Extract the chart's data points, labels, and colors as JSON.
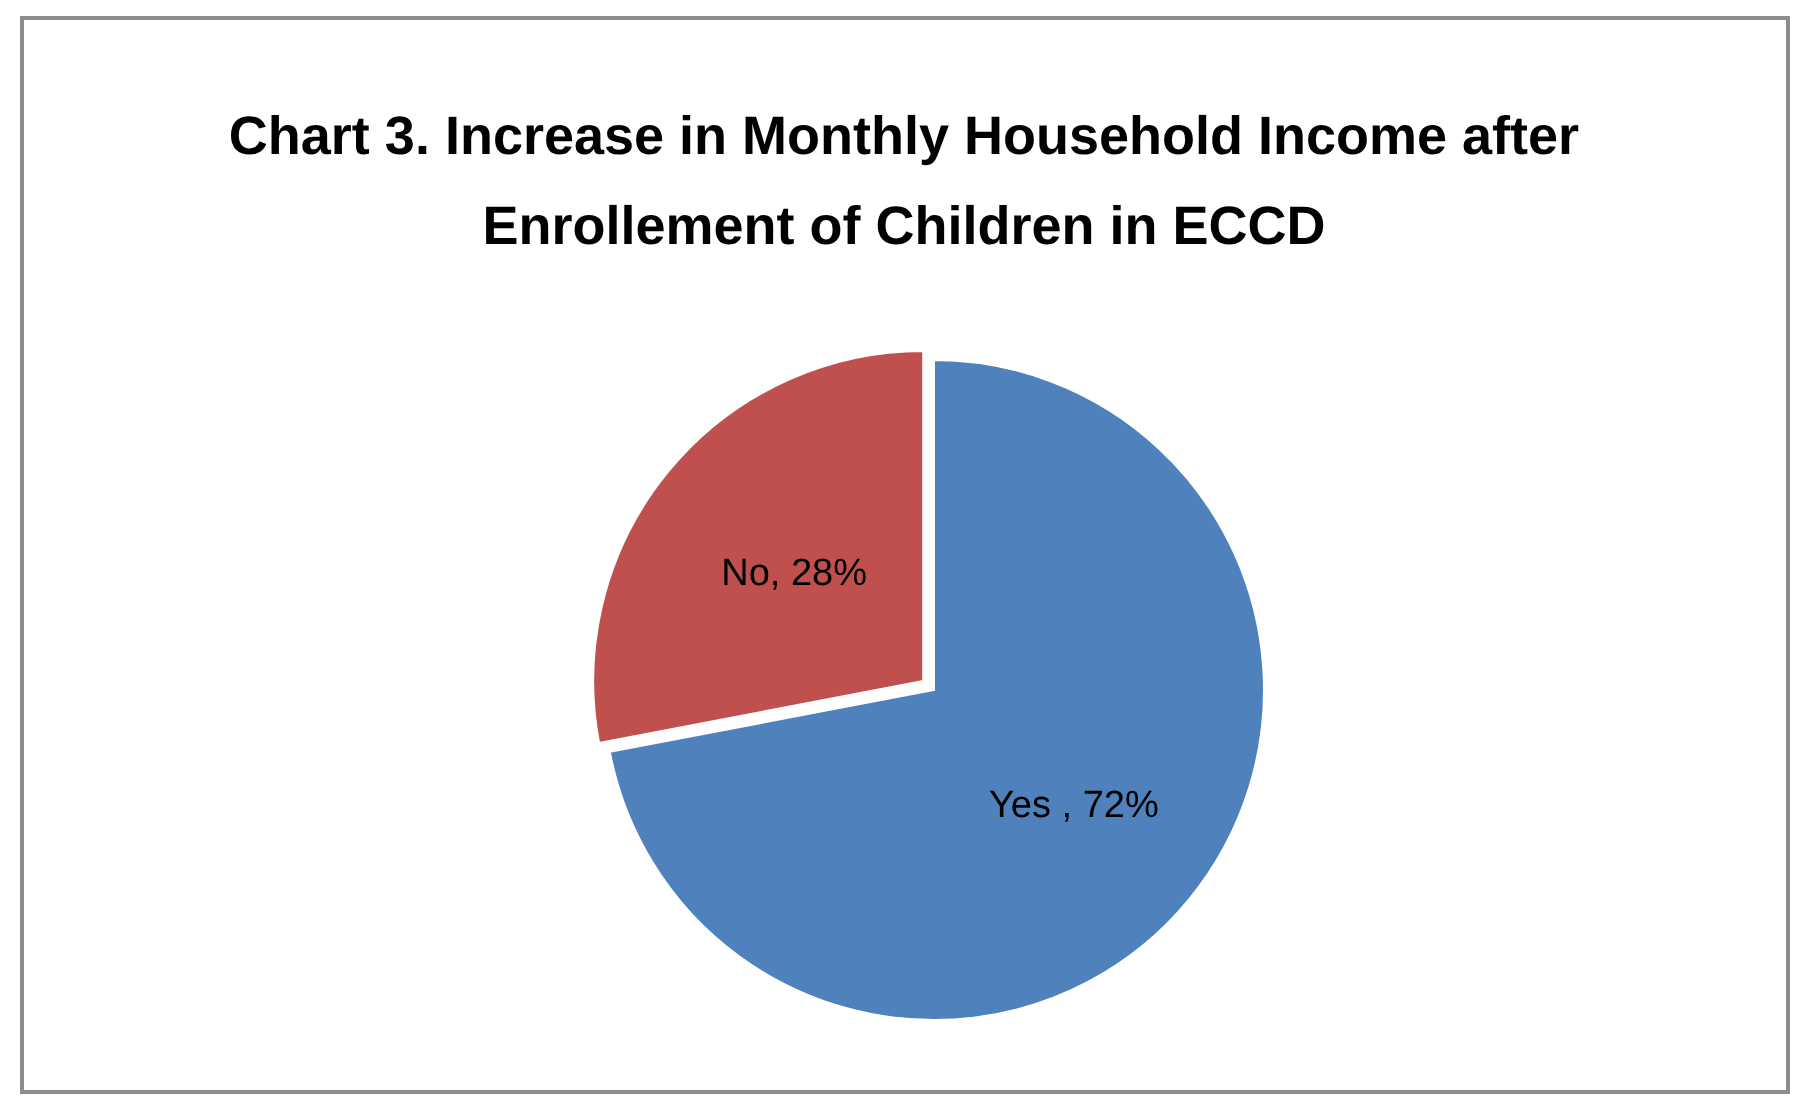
{
  "chart_data": {
    "type": "pie",
    "title": "Chart 3. Increase in Monthly Household Income after Enrollement of Children in ECCD",
    "categories": [
      "Yes ",
      "No"
    ],
    "values": [
      72,
      28
    ],
    "colors": [
      "#4f81bd",
      "#c0504d"
    ],
    "value_labels": [
      "72%",
      "28%"
    ]
  }
}
